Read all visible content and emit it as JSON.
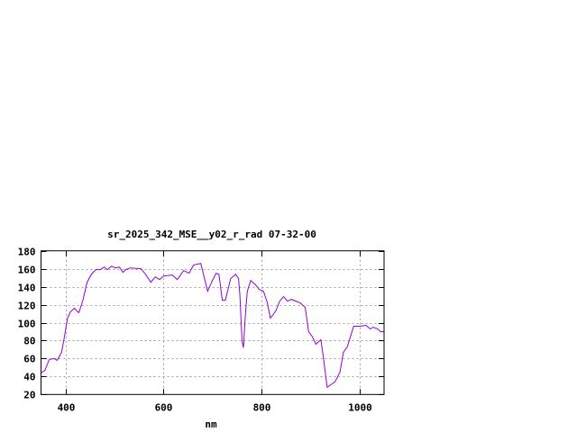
{
  "chart_data": {
    "type": "line",
    "title": "sr_2025_342_MSE__y02_r_rad 07-32-00",
    "xlabel": "nm",
    "ylabel": "",
    "xlim": [
      350,
      1050
    ],
    "ylim": [
      20,
      180
    ],
    "xticks": [
      400,
      600,
      800,
      1000
    ],
    "yticks": [
      20,
      40,
      60,
      80,
      100,
      120,
      140,
      160,
      180
    ],
    "grid": true,
    "line_color": "#9400d3",
    "series": [
      {
        "x": [
          350,
          358,
          367,
          377,
          383,
          392,
          398,
          404,
          410,
          418,
          427,
          435,
          444,
          453,
          462,
          471,
          479,
          485,
          494,
          502,
          510,
          517,
          523,
          532,
          554,
          563,
          574,
          583,
          592,
          600,
          618,
          628,
          641,
          652,
          661,
          667,
          676,
          681,
          690,
          698,
          707,
          713,
          720,
          726,
          737,
          747,
          753,
          756,
          760,
          763,
          767,
          771,
          778,
          788,
          795,
          804,
          812,
          818,
          829,
          837,
          845,
          853,
          861,
          870,
          879,
          889,
          896,
          903,
          911,
          921,
          926,
          934,
          950,
          960,
          967,
          975,
          988,
          1000,
          1013,
          1022,
          1028,
          1037,
          1043,
          1050
        ],
        "y": [
          44,
          47,
          59,
          60,
          58,
          67,
          85,
          105,
          112,
          116,
          111,
          124,
          145,
          154,
          159,
          159,
          162,
          159,
          163,
          161,
          162,
          156,
          159,
          161,
          160,
          154,
          145,
          151,
          148,
          152,
          153,
          148,
          158,
          155,
          164,
          165,
          166,
          155,
          135,
          145,
          155,
          154,
          125,
          125,
          149,
          154,
          149,
          129,
          80,
          72,
          109,
          135,
          147,
          142,
          137,
          135,
          122,
          105,
          113,
          124,
          129,
          124,
          126,
          124,
          122,
          117,
          90,
          85,
          76,
          81,
          62,
          28,
          34,
          45,
          67,
          73,
          96,
          96,
          97,
          93,
          95,
          93,
          90,
          90
        ]
      }
    ]
  }
}
